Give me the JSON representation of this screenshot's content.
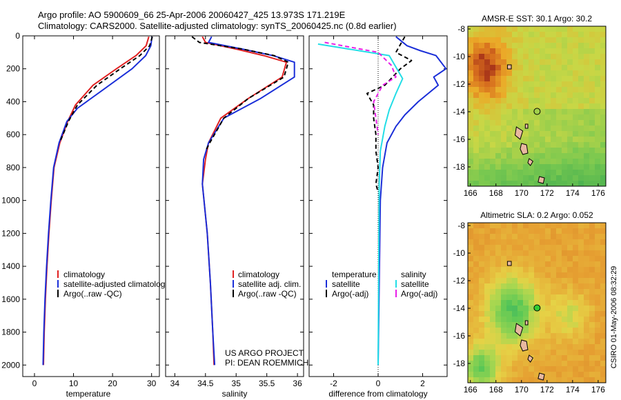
{
  "header": {
    "line1": "Argo profile: AO 5900609_66 25-Apr-2006 20060427_425 13.973S 171.219E",
    "line2": "Climatology: CARS2000. Satellite-adjusted climatology: synTS_20060425.nc (0.8d earlier)"
  },
  "side_label": "CSIRO 01-May-2006 08:32:29",
  "credit": {
    "line1": "US ARGO PROJECT",
    "line2": "PI: DEAN ROEMMICH"
  },
  "colors": {
    "red": "#e02020",
    "blue": "#1a2ed8",
    "black": "#000000",
    "cyan": "#22dde6",
    "magenta": "#e81ce8"
  },
  "chart_data": [
    {
      "type": "line",
      "id": "temperature",
      "xlabel": "temperature",
      "xlim": [
        -3,
        32
      ],
      "ylim": [
        2070,
        0
      ],
      "xticks": [
        0,
        10,
        20,
        30
      ],
      "yticks": [
        0,
        200,
        400,
        600,
        800,
        1000,
        1200,
        1400,
        1600,
        1800,
        2000
      ],
      "legend": [
        "climatology",
        "satellite-adjusted climatology",
        "Argo(..raw -QC)"
      ],
      "series": [
        {
          "name": "climatology",
          "color": "red",
          "dash": "",
          "x": [
            29.3,
            28.6,
            26.0,
            21.0,
            15.0,
            10.5,
            8.5,
            6.5,
            5.0,
            4.3,
            3.7,
            3.2,
            2.8,
            2.5,
            2.3
          ],
          "y": [
            5,
            60,
            120,
            200,
            300,
            420,
            520,
            650,
            800,
            1000,
            1200,
            1400,
            1600,
            1800,
            2000
          ]
        },
        {
          "name": "satellite-adjusted climatology",
          "color": "blue",
          "dash": "",
          "x": [
            30.1,
            29.8,
            28.5,
            25.0,
            18.0,
            11.0,
            8.3,
            6.3,
            4.9,
            4.2,
            3.6,
            3.1,
            2.7,
            2.4,
            2.2
          ],
          "y": [
            5,
            60,
            120,
            200,
            320,
            440,
            520,
            650,
            800,
            1000,
            1200,
            1400,
            1600,
            1800,
            2000
          ]
        },
        {
          "name": "Argo(..raw -QC)",
          "color": "black",
          "dash": "6 4",
          "x": [
            30.2,
            29.5,
            27.0,
            22.0,
            16.0,
            11.0,
            8.7,
            6.6
          ],
          "y": [
            5,
            60,
            120,
            200,
            300,
            420,
            520,
            640
          ]
        }
      ]
    },
    {
      "type": "line",
      "id": "salinity",
      "xlabel": "salinity",
      "xlim": [
        33.85,
        36.1
      ],
      "ylim": [
        2070,
        0
      ],
      "xticks": [
        34,
        34.5,
        35,
        35.5,
        36
      ],
      "legend": [
        "climatology",
        "satellite adj. clim.",
        "Argo(..raw -QC)"
      ],
      "series": [
        {
          "name": "climatology",
          "color": "red",
          "dash": "",
          "x": [
            34.45,
            34.5,
            35.0,
            35.45,
            35.82,
            35.75,
            35.2,
            34.75,
            34.55,
            34.5,
            34.45,
            34.53,
            34.58,
            34.62,
            34.64
          ],
          "y": [
            5,
            40,
            80,
            120,
            160,
            250,
            380,
            500,
            650,
            750,
            900,
            1200,
            1500,
            1800,
            2000
          ]
        },
        {
          "name": "satellite adj. clim.",
          "color": "blue",
          "dash": "",
          "x": [
            34.6,
            34.55,
            35.1,
            35.6,
            35.95,
            35.95,
            35.4,
            34.8,
            34.55,
            34.47,
            34.45,
            34.53,
            34.58,
            34.62,
            34.65
          ],
          "y": [
            5,
            40,
            80,
            120,
            160,
            250,
            380,
            500,
            650,
            750,
            900,
            1200,
            1500,
            1800,
            2000
          ]
        },
        {
          "name": "Argo(..raw -QC)",
          "color": "black",
          "dash": "6 4",
          "x": [
            34.28,
            34.4,
            35.1,
            35.62,
            35.85,
            35.78,
            35.2,
            34.8,
            34.57,
            34.5
          ],
          "y": [
            5,
            40,
            80,
            120,
            160,
            250,
            380,
            500,
            650,
            700
          ]
        }
      ]
    },
    {
      "type": "line",
      "id": "difference",
      "xlabel": "difference from climatology",
      "xlim": [
        -3.1,
        3.1
      ],
      "ylim": [
        2070,
        0
      ],
      "xticks": [
        -2,
        0,
        2
      ],
      "legend_temperature": {
        "title": "temperature",
        "items": [
          "satellite",
          "Argo(-adj)"
        ]
      },
      "legend_salinity": {
        "title": "salinity",
        "items": [
          "satellite",
          "Argo(-adj)"
        ]
      },
      "series": [
        {
          "name": "temperature satellite",
          "color": "blue",
          "dash": "",
          "x": [
            0.8,
            1.3,
            1.9,
            2.6,
            3.05,
            2.5,
            2.7,
            1.8,
            1.2,
            0.8,
            0.4,
            0.2,
            0.1,
            0.05,
            0.0
          ],
          "y": [
            5,
            60,
            90,
            120,
            200,
            250,
            300,
            400,
            480,
            550,
            650,
            800,
            1000,
            1500,
            2000
          ]
        },
        {
          "name": "temperature Argo(-adj)",
          "color": "black",
          "dash": "6 4",
          "x": [
            1.2,
            0.8,
            1.5,
            1.0,
            0.3,
            -0.5,
            -0.2,
            -0.2,
            -0.1,
            -0.1,
            0.0,
            -0.1,
            0.0
          ],
          "y": [
            5,
            100,
            150,
            200,
            300,
            350,
            420,
            500,
            600,
            700,
            800,
            900,
            950
          ]
        },
        {
          "name": "salinity satellite",
          "color": "cyan",
          "dash": "",
          "x": [
            -2.7,
            0.5,
            1.1,
            0.8,
            0.5,
            0.3,
            0.1,
            0.05,
            0.0
          ],
          "y": [
            50,
            120,
            260,
            350,
            450,
            550,
            700,
            900,
            2000
          ]
        },
        {
          "name": "salinity Argo(-adj)",
          "color": "magenta",
          "dash": "6 4",
          "x": [
            -2.4,
            0.0,
            0.6,
            0.8,
            0.2,
            -0.2,
            -0.1,
            0.0
          ],
          "y": [
            40,
            100,
            180,
            250,
            300,
            400,
            500,
            600
          ]
        }
      ]
    },
    {
      "type": "heatmap",
      "id": "sst-map",
      "title": "AMSR-E SST: 30.1  Argo: 30.2",
      "xlim": [
        165.8,
        176.6
      ],
      "ylim": [
        -19.4,
        -7.8
      ],
      "xticks": [
        166,
        168,
        170,
        172,
        174,
        176
      ],
      "yticks": [
        -8,
        -10,
        -12,
        -14,
        -16,
        -18
      ],
      "argo_position": [
        171.219,
        -13.973
      ],
      "argo_marker_fill": "none"
    },
    {
      "type": "heatmap",
      "id": "sla-map",
      "title": "Altimetric SLA: 0.2  Argo: 0.052",
      "xlim": [
        165.8,
        176.6
      ],
      "ylim": [
        -19.4,
        -7.8
      ],
      "xticks": [
        166,
        168,
        170,
        172,
        174,
        176
      ],
      "yticks": [
        -8,
        -10,
        -12,
        -14,
        -16,
        -18
      ],
      "argo_position": [
        171.219,
        -13.973
      ],
      "argo_marker_fill": "#33cc33"
    }
  ]
}
